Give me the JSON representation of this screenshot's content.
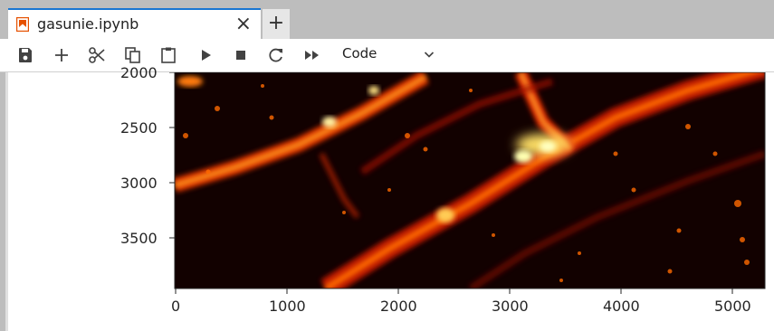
{
  "tab": {
    "title": "gasunie.ipynb",
    "close_glyph": "×",
    "new_glyph": "+",
    "icon": "notebook-icon",
    "accent": "#1976d2"
  },
  "toolbar": {
    "buttons": [
      {
        "name": "save-icon"
      },
      {
        "name": "plus-icon"
      },
      {
        "name": "cut-icon"
      },
      {
        "name": "copy-icon"
      },
      {
        "name": "paste-icon"
      },
      {
        "name": "run-icon"
      },
      {
        "name": "stop-icon"
      },
      {
        "name": "restart-icon"
      },
      {
        "name": "fast-forward-icon"
      }
    ],
    "cell_type": "Code"
  },
  "chart_data": {
    "type": "heatmap",
    "colormap": "hot",
    "x_ticks": [
      "0",
      "1000",
      "2000",
      "3000",
      "4000",
      "5000"
    ],
    "y_ticks": [
      "2000",
      "2500",
      "3000",
      "3500"
    ],
    "xlim": [
      0,
      5300
    ],
    "ylim": [
      3950,
      2000
    ]
  }
}
